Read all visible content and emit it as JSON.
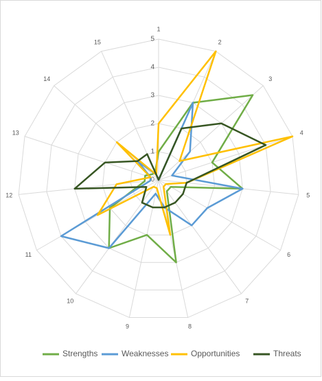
{
  "chart_data": {
    "type": "radar",
    "categories": [
      "1",
      "2",
      "3",
      "4",
      "5",
      "6",
      "7",
      "8",
      "9",
      "10",
      "11",
      "12",
      "13",
      "14",
      "15"
    ],
    "rlim": [
      0,
      5
    ],
    "rticks": [
      0,
      1,
      2,
      3,
      4,
      5
    ],
    "grid": true,
    "legend": "bottom",
    "series": [
      {
        "name": "Strengths",
        "color": "#70ad47",
        "values": [
          1,
          3,
          4.5,
          2,
          3,
          0.5,
          0.5,
          3,
          2,
          3,
          2,
          0.5,
          0.5,
          0.3,
          0.3
        ]
      },
      {
        "name": "Weaknesses",
        "color": "#5b9bd5",
        "values": [
          0,
          3,
          1.5,
          0.5,
          3,
          2,
          2,
          1,
          0.5,
          3,
          4,
          0.3,
          0.3,
          1,
          0.2
        ]
      },
      {
        "name": "Opportunities",
        "color": "#ffc000",
        "values": [
          2,
          5,
          1,
          5,
          1,
          0.3,
          0.3,
          2,
          0.3,
          0.3,
          2.5,
          1.5,
          0.3,
          2,
          0.2
        ]
      },
      {
        "name": "Threats",
        "color": "#375623",
        "values": [
          0,
          2,
          3,
          4,
          1,
          1,
          1,
          1,
          1,
          1,
          0.5,
          3,
          2,
          1,
          1
        ]
      }
    ]
  }
}
